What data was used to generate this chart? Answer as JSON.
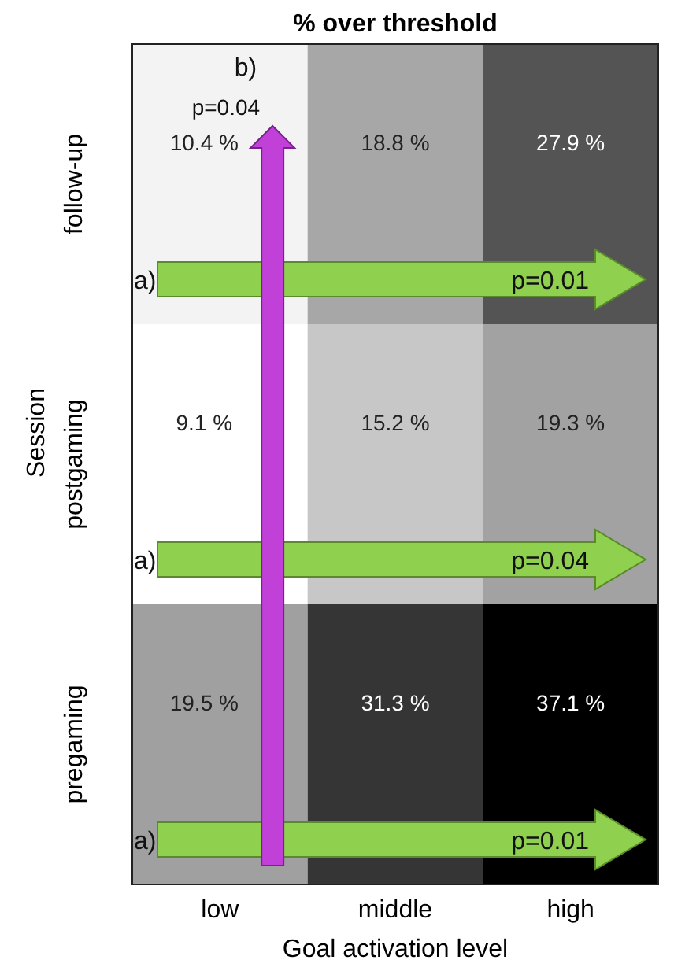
{
  "chart_data": {
    "type": "heatmap",
    "title": "% over threshold",
    "xlabel": "Goal activation level",
    "ylabel": "Session",
    "categories": [
      "low",
      "middle",
      "high"
    ],
    "y_categories": [
      "follow-up",
      "postgaming",
      "pregaming"
    ],
    "cells": [
      [
        10.4,
        18.8,
        27.9
      ],
      [
        9.1,
        15.2,
        19.3
      ],
      [
        19.5,
        31.3,
        37.1
      ]
    ],
    "cell_labels": [
      [
        "10.4 %",
        "18.8 %",
        "27.9 %"
      ],
      [
        "9.1 %",
        "15.2 %",
        "19.3 %"
      ],
      [
        "19.5 %",
        "31.3 %",
        "37.1 %"
      ]
    ],
    "annotations": [
      "a)",
      "p=0.01",
      "a)",
      "p=0.04",
      "a)",
      "p=0.01",
      "b)",
      "p=0.04"
    ]
  }
}
